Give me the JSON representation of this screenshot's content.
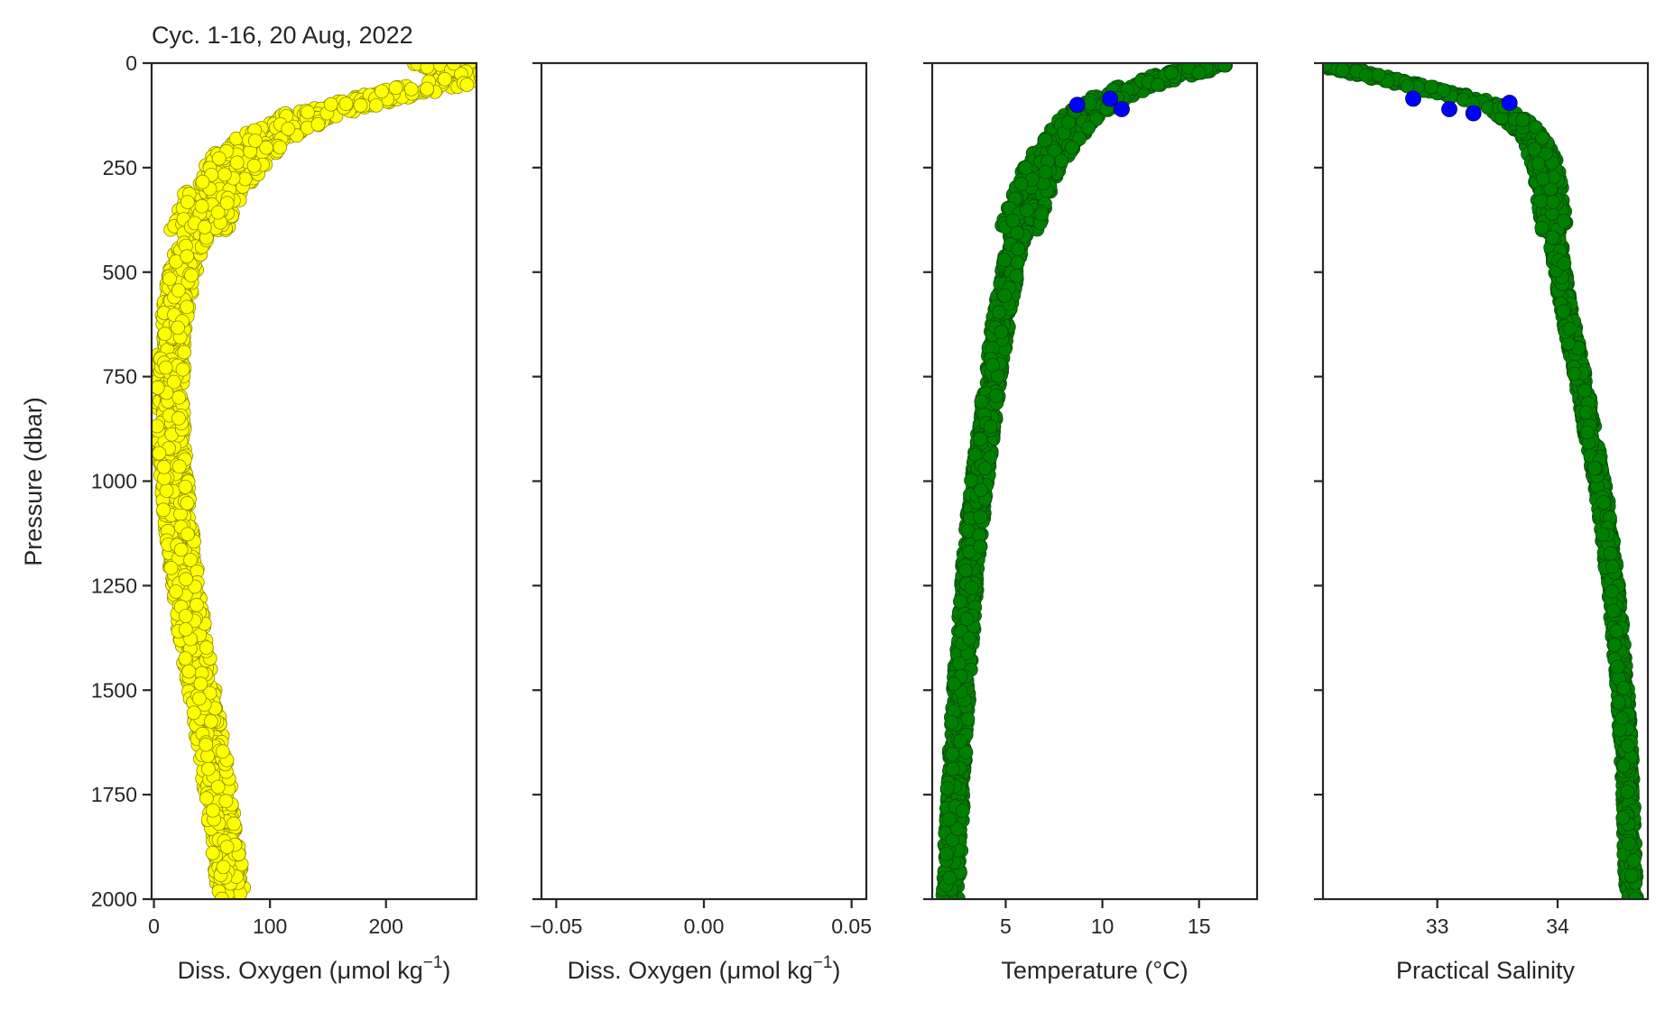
{
  "title": "Cyc. 1-16, 20 Aug, 2022",
  "ylabel": "Pressure (dbar)",
  "colors": {
    "oxygen_marker": "#ffff00",
    "oxygen_edge": "#8a8a00",
    "temp_sal_marker": "#008000",
    "temp_sal_edge": "#0a4a0a",
    "flag_marker": "#0000ff",
    "axes": "#262626"
  },
  "chart_data": [
    {
      "type": "scatter",
      "xlabel_main": "Diss. Oxygen (μmol kg",
      "xlabel_sup": "−1",
      "xlabel_tail": ")",
      "xlim": [
        -2,
        278
      ],
      "ylim": [
        2000,
        0
      ],
      "xticks": [
        0,
        100,
        200
      ],
      "xtick_labels": [
        "0",
        "100",
        "200"
      ],
      "yticks": [
        0,
        250,
        500,
        750,
        1000,
        1250,
        1500,
        1750,
        2000
      ],
      "ytick_labels": [
        "0",
        "250",
        "500",
        "750",
        "1000",
        "1250",
        "1500",
        "1750",
        "2000"
      ],
      "profile": [
        [
          5,
          250
        ],
        [
          10,
          258
        ],
        [
          20,
          262
        ],
        [
          30,
          265
        ],
        [
          40,
          262
        ],
        [
          50,
          250
        ],
        [
          60,
          232
        ],
        [
          80,
          200
        ],
        [
          100,
          170
        ],
        [
          120,
          140
        ],
        [
          150,
          115
        ],
        [
          175,
          100
        ],
        [
          200,
          85
        ],
        [
          225,
          75
        ],
        [
          250,
          68
        ],
        [
          300,
          55
        ],
        [
          350,
          45
        ],
        [
          400,
          37
        ],
        [
          450,
          30
        ],
        [
          500,
          25
        ],
        [
          550,
          21
        ],
        [
          600,
          18
        ],
        [
          650,
          16
        ],
        [
          700,
          15
        ],
        [
          750,
          14
        ],
        [
          800,
          14
        ],
        [
          850,
          14
        ],
        [
          900,
          15
        ],
        [
          950,
          16
        ],
        [
          1000,
          18
        ],
        [
          1100,
          21
        ],
        [
          1200,
          25
        ],
        [
          1300,
          30
        ],
        [
          1400,
          35
        ],
        [
          1500,
          41
        ],
        [
          1600,
          47
        ],
        [
          1700,
          53
        ],
        [
          1800,
          58
        ],
        [
          1900,
          63
        ],
        [
          1990,
          67
        ]
      ],
      "spread": 12
    },
    {
      "type": "scatter",
      "xlabel_main": "Diss. Oxygen (μmol kg",
      "xlabel_sup": "−1",
      "xlabel_tail": ")",
      "xlim": [
        -0.055,
        0.055
      ],
      "ylim": [
        2000,
        0
      ],
      "xticks": [
        -0.05,
        0.0,
        0.05
      ],
      "xtick_labels": [
        "−0.05",
        "0.00",
        "0.05"
      ],
      "profile": []
    },
    {
      "type": "scatter",
      "xlabel_main": "Temperature (°C)",
      "xlabel_sup": "",
      "xlabel_tail": "",
      "xlim": [
        1.2,
        18.0
      ],
      "ylim": [
        2000,
        0
      ],
      "xticks": [
        5,
        10,
        15
      ],
      "xtick_labels": [
        "5",
        "10",
        "15"
      ],
      "profile": [
        [
          5,
          15.5
        ],
        [
          15,
          15.0
        ],
        [
          25,
          14.0
        ],
        [
          40,
          12.8
        ],
        [
          60,
          11.5
        ],
        [
          80,
          10.5
        ],
        [
          100,
          9.8
        ],
        [
          125,
          9.0
        ],
        [
          150,
          8.4
        ],
        [
          200,
          7.6
        ],
        [
          250,
          6.9
        ],
        [
          300,
          6.4
        ],
        [
          400,
          5.7
        ],
        [
          500,
          5.2
        ],
        [
          600,
          4.8
        ],
        [
          700,
          4.5
        ],
        [
          800,
          4.2
        ],
        [
          900,
          3.9
        ],
        [
          1000,
          3.65
        ],
        [
          1100,
          3.4
        ],
        [
          1200,
          3.2
        ],
        [
          1300,
          3.0
        ],
        [
          1400,
          2.85
        ],
        [
          1500,
          2.7
        ],
        [
          1600,
          2.55
        ],
        [
          1700,
          2.45
        ],
        [
          1800,
          2.35
        ],
        [
          1900,
          2.25
        ],
        [
          1990,
          2.15
        ]
      ],
      "spread": 0.45,
      "flags": [
        [
          85,
          10.4
        ],
        [
          100,
          8.7
        ],
        [
          110,
          11.0
        ]
      ]
    },
    {
      "type": "scatter",
      "xlabel_main": "Practical Salinity",
      "xlabel_sup": "",
      "xlabel_tail": "",
      "xlim": [
        32.05,
        34.75
      ],
      "ylim": [
        2000,
        0
      ],
      "xticks": [
        33,
        34
      ],
      "xtick_labels": [
        "33",
        "34"
      ],
      "profile": [
        [
          5,
          32.1
        ],
        [
          20,
          32.3
        ],
        [
          40,
          32.6
        ],
        [
          60,
          32.9
        ],
        [
          80,
          33.2
        ],
        [
          100,
          33.45
        ],
        [
          125,
          33.6
        ],
        [
          150,
          33.72
        ],
        [
          200,
          33.84
        ],
        [
          250,
          33.9
        ],
        [
          300,
          33.93
        ],
        [
          400,
          33.97
        ],
        [
          500,
          34.02
        ],
        [
          600,
          34.08
        ],
        [
          700,
          34.15
        ],
        [
          800,
          34.22
        ],
        [
          900,
          34.28
        ],
        [
          1000,
          34.35
        ],
        [
          1100,
          34.4
        ],
        [
          1200,
          34.44
        ],
        [
          1300,
          34.48
        ],
        [
          1400,
          34.51
        ],
        [
          1500,
          34.54
        ],
        [
          1600,
          34.56
        ],
        [
          1700,
          34.58
        ],
        [
          1800,
          34.59
        ],
        [
          1900,
          34.6
        ],
        [
          1990,
          34.61
        ]
      ],
      "spread": 0.05,
      "flags": [
        [
          85,
          32.8
        ],
        [
          95,
          33.6
        ],
        [
          110,
          33.1
        ],
        [
          120,
          33.3
        ]
      ]
    }
  ]
}
